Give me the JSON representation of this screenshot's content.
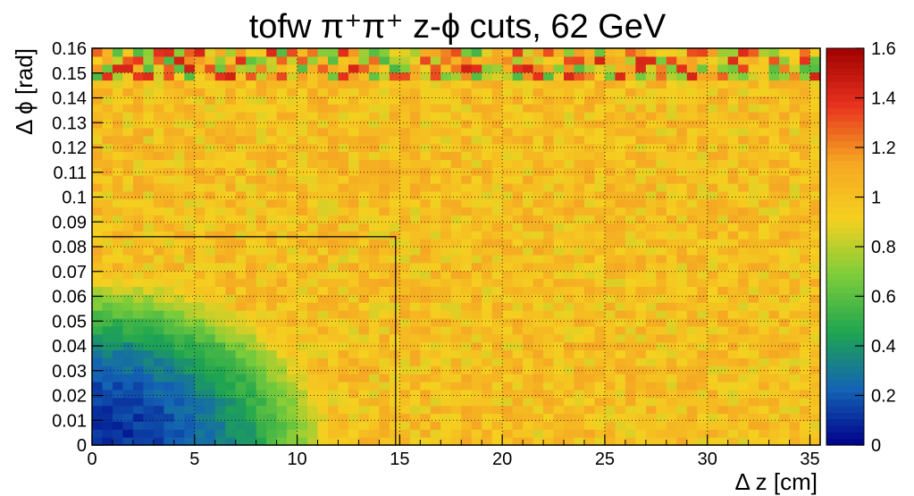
{
  "chart_data": {
    "type": "heatmap",
    "title": "tofw π⁺π⁺  z-ϕ cuts, 62 GeV",
    "xlabel": "Δ z [cm]",
    "ylabel": "Δ ϕ [rad]",
    "xlim": [
      0,
      35.5
    ],
    "ylim": [
      0,
      0.16
    ],
    "zlim": [
      0,
      1.6
    ],
    "x_ticks": [
      "0",
      "5",
      "10",
      "15",
      "20",
      "25",
      "30",
      "35"
    ],
    "x_tick_values": [
      0,
      5,
      10,
      15,
      20,
      25,
      30,
      35
    ],
    "y_ticks": [
      "0",
      "0.01",
      "0.02",
      "0.03",
      "0.04",
      "0.05",
      "0.06",
      "0.07",
      "0.08",
      "0.09",
      "0.1",
      "0.11",
      "0.12",
      "0.13",
      "0.14",
      "0.15",
      "0.16"
    ],
    "y_tick_values": [
      0,
      0.01,
      0.02,
      0.03,
      0.04,
      0.05,
      0.06,
      0.07,
      0.08,
      0.09,
      0.1,
      0.11,
      0.12,
      0.13,
      0.14,
      0.15,
      0.16
    ],
    "z_ticks": [
      "0",
      "0.2",
      "0.4",
      "0.6",
      "0.8",
      "1",
      "1.2",
      "1.4",
      "1.6"
    ],
    "z_tick_values": [
      0,
      0.2,
      0.4,
      0.6,
      0.8,
      1.0,
      1.2,
      1.4,
      1.6
    ],
    "bins": {
      "nx": 71,
      "ny": 50
    },
    "description_values": {
      "background_level": 1.0,
      "minimum_near_origin": 0.1,
      "suppression_extent_x": 12,
      "suppression_extent_y": 0.07
    },
    "cut_box": {
      "x": [
        0,
        14.8
      ],
      "y": [
        0,
        0.084
      ]
    },
    "grid": true,
    "colormap": [
      "#00008b",
      "#1464b4",
      "#1fa550",
      "#7ccd3a",
      "#f5d020",
      "#f5a623",
      "#e8321e",
      "#a00000"
    ]
  }
}
